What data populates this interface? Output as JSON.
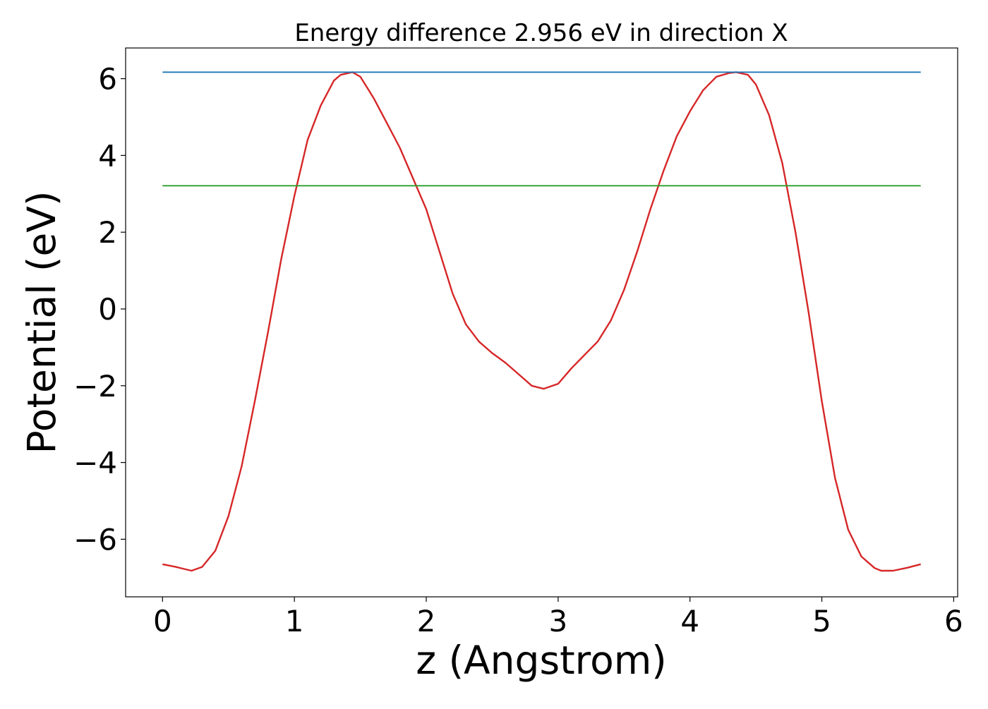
{
  "chart_data": {
    "type": "line",
    "title": "Energy difference 2.956 eV in direction X",
    "xlabel": "z (Angstrom)",
    "ylabel": "Potential (eV)",
    "xlim": [
      -0.28,
      6.03
    ],
    "ylim": [
      -7.5,
      6.8
    ],
    "xticks": [
      0,
      1,
      2,
      3,
      4,
      5,
      6
    ],
    "xtick_labels": [
      "0",
      "1",
      "2",
      "3",
      "4",
      "5",
      "6"
    ],
    "yticks": [
      -6,
      -4,
      -2,
      0,
      2,
      4,
      6
    ],
    "ytick_labels": [
      "−6",
      "−4",
      "−2",
      "0",
      "2",
      "4",
      "6"
    ],
    "grid": false,
    "series": [
      {
        "color": "#d62728",
        "x": [
          0.0,
          0.1,
          0.22,
          0.3,
          0.4,
          0.5,
          0.6,
          0.7,
          0.8,
          0.9,
          1.0,
          1.1,
          1.2,
          1.3,
          1.35,
          1.44,
          1.5,
          1.6,
          1.7,
          1.8,
          1.9,
          2.0,
          2.1,
          2.2,
          2.3,
          2.4,
          2.5,
          2.6,
          2.7,
          2.8,
          2.89,
          3.0,
          3.1,
          3.2,
          3.3,
          3.4,
          3.5,
          3.6,
          3.7,
          3.8,
          3.9,
          4.0,
          4.1,
          4.2,
          4.3,
          4.35,
          4.44,
          4.5,
          4.6,
          4.7,
          4.8,
          4.9,
          5.0,
          5.1,
          5.2,
          5.3,
          5.4,
          5.45,
          5.54,
          5.65,
          5.75
        ],
        "y": [
          -6.65,
          -6.72,
          -6.82,
          -6.72,
          -6.3,
          -5.4,
          -4.1,
          -2.4,
          -0.6,
          1.3,
          2.95,
          4.4,
          5.3,
          5.95,
          6.1,
          6.17,
          6.05,
          5.5,
          4.85,
          4.2,
          3.4,
          2.6,
          1.5,
          0.4,
          -0.4,
          -0.85,
          -1.15,
          -1.4,
          -1.7,
          -2.0,
          -2.08,
          -1.95,
          -1.55,
          -1.2,
          -0.85,
          -0.3,
          0.5,
          1.5,
          2.6,
          3.6,
          4.5,
          5.15,
          5.7,
          6.05,
          6.15,
          6.17,
          6.1,
          5.85,
          5.05,
          3.8,
          2.0,
          -0.1,
          -2.4,
          -4.4,
          -5.75,
          -6.45,
          -6.75,
          -6.82,
          -6.82,
          -6.74,
          -6.65
        ]
      },
      {
        "color": "#1f77b4",
        "x": [
          0.0,
          5.75
        ],
        "y": [
          6.17,
          6.17
        ]
      },
      {
        "color": "#2ca02c",
        "x": [
          0.0,
          5.75
        ],
        "y": [
          3.21,
          3.21
        ]
      }
    ]
  }
}
